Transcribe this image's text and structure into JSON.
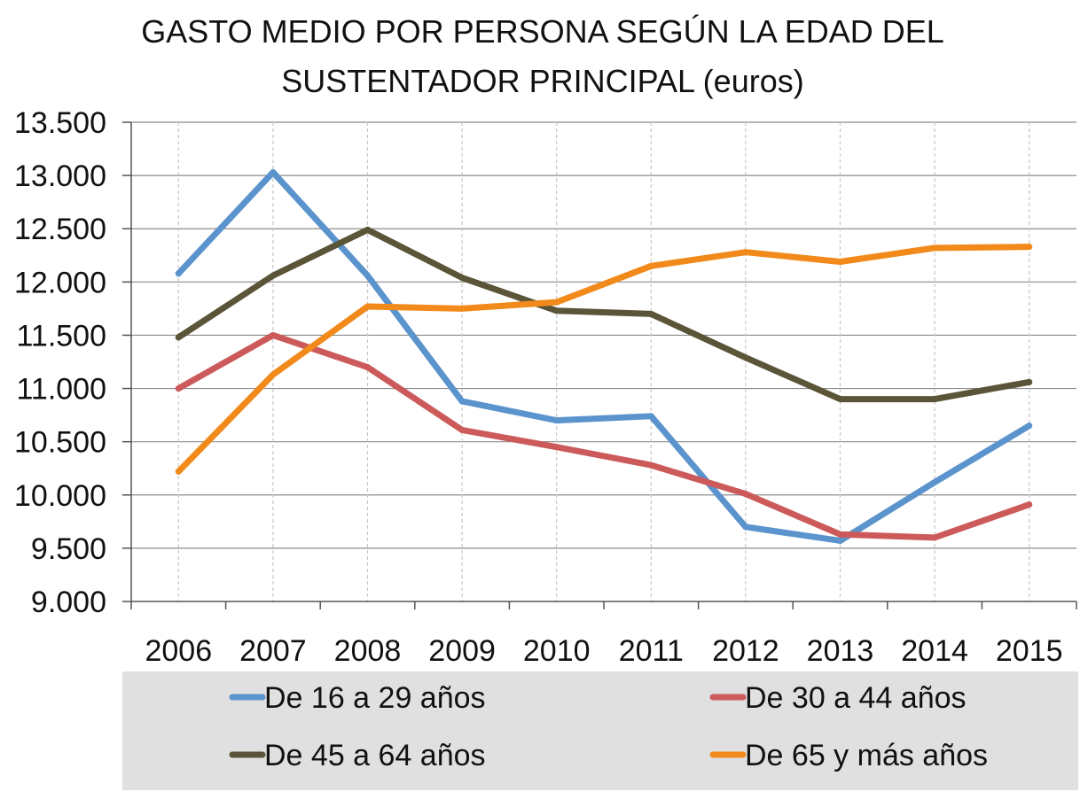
{
  "chart_data": {
    "type": "line",
    "title": "GASTO MEDIO POR PERSONA SEGÚN LA EDAD DEL",
    "subtitle": "SUSTENTADOR PRINCIPAL (euros)",
    "xlabel": "",
    "ylabel": "",
    "categories": [
      "2006",
      "2007",
      "2008",
      "2009",
      "2010",
      "2011",
      "2012",
      "2013",
      "2014",
      "2015"
    ],
    "ylim": [
      9000,
      13500
    ],
    "yticks": [
      9000,
      9500,
      10000,
      10500,
      11000,
      11500,
      12000,
      12500,
      13000,
      13500
    ],
    "ytick_labels": [
      "9.000",
      "9.500",
      "10.000",
      "10.500",
      "11.000",
      "11.500",
      "12.000",
      "12.500",
      "13.000",
      "13.500"
    ],
    "grid": "horizontal solid, vertical dashed",
    "legend_position": "bottom",
    "legend_background": "#e0e0e0",
    "series": [
      {
        "name": "De 16 a 29 años",
        "color": "#5b93cc",
        "values": [
          12080,
          13030,
          12060,
          10880,
          10700,
          10740,
          9700,
          9570,
          10120,
          10650
        ]
      },
      {
        "name": "De 30 a 44 años",
        "color": "#cc5a5a",
        "values": [
          11000,
          11500,
          11200,
          10610,
          10450,
          10280,
          10010,
          9630,
          9600,
          9910
        ]
      },
      {
        "name": "De 45 a 64 años",
        "color": "#5a5538",
        "values": [
          11480,
          12060,
          12490,
          12040,
          11730,
          11700,
          11290,
          10900,
          10900,
          11060
        ]
      },
      {
        "name": "De 65 y más años",
        "color": "#f18a1a",
        "values": [
          10220,
          11130,
          11770,
          11750,
          11810,
          12150,
          12280,
          12190,
          12320,
          12330
        ]
      }
    ]
  }
}
